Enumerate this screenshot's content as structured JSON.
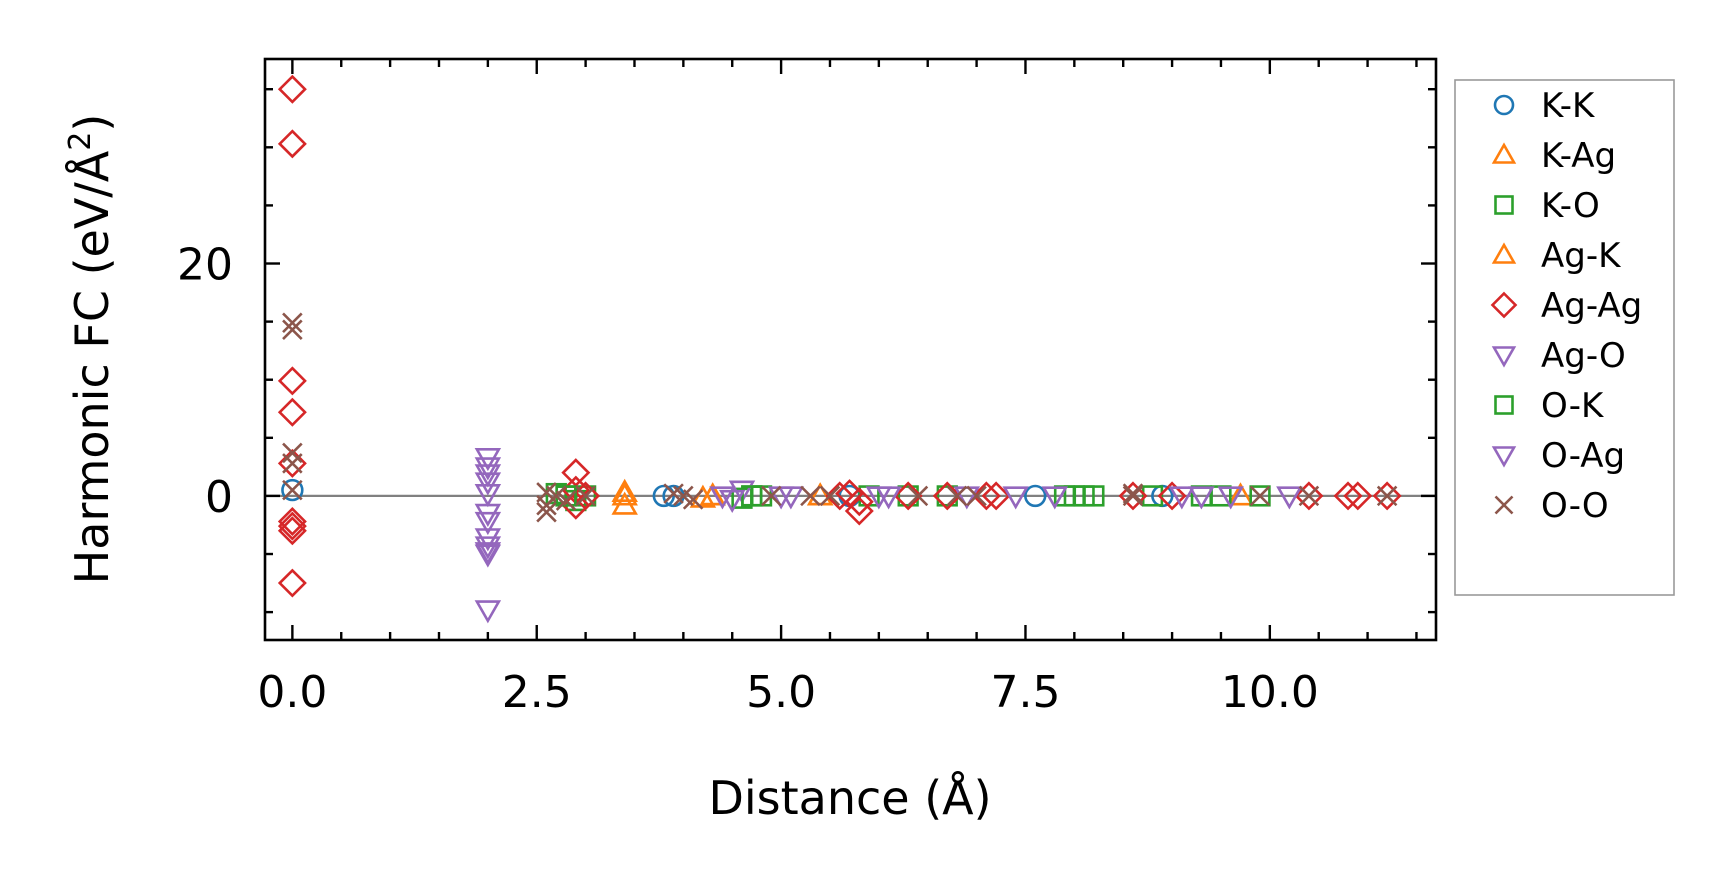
{
  "chart_data": {
    "type": "scatter",
    "title": "",
    "xlabel": "Distance (Å)",
    "ylabel": "Harmonic FC (eV/Å",
    "ylabel_sup": "2",
    "ylabel_close": ")",
    "xlim": [
      -0.28,
      11.7
    ],
    "ylim": [
      -12.4,
      37.6
    ],
    "xticks": [
      0.0,
      2.5,
      5.0,
      7.5,
      10.0
    ],
    "xtick_labels": [
      "0.0",
      "2.5",
      "5.0",
      "7.5",
      "10.0"
    ],
    "yticks": [
      0,
      20
    ],
    "ytick_labels": [
      "0",
      "20"
    ],
    "zero_line": true,
    "legend_position": "right-outside",
    "series": [
      {
        "name": "K-K",
        "color": "#1f77b4",
        "marker": "circle",
        "x": [
          0.0,
          3.8,
          3.9,
          5.7,
          7.6,
          8.9
        ],
        "y": [
          0.5,
          0.0,
          0.0,
          0.0,
          0.0,
          0.0
        ]
      },
      {
        "name": "K-Ag",
        "color": "#ff7f0e",
        "marker": "triangle-up",
        "filled": true,
        "x": [
          3.4,
          3.4,
          4.2,
          4.3,
          5.4,
          9.7
        ],
        "y": [
          0.3,
          -0.8,
          -0.2,
          0.0,
          0.0,
          0.0
        ]
      },
      {
        "name": "K-O",
        "color": "#2ca02c",
        "marker": "square",
        "x": [
          2.7,
          2.8,
          2.9,
          3.0,
          4.6,
          4.7,
          4.8,
          5.9,
          6.3,
          6.7,
          7.9,
          8.1,
          8.2,
          8.8,
          9.3,
          9.5,
          9.9
        ],
        "y": [
          0.2,
          0.0,
          -0.4,
          0.0,
          -0.2,
          0.0,
          0.0,
          0.0,
          0.0,
          0.0,
          0.0,
          0.0,
          0.0,
          0.0,
          0.0,
          0.0,
          0.0
        ]
      },
      {
        "name": "Ag-K",
        "color": "#ff7f0e",
        "marker": "triangle-up",
        "x": [
          3.4,
          4.3,
          5.4
        ],
        "y": [
          0.0,
          0.0,
          0.0
        ]
      },
      {
        "name": "Ag-Ag",
        "color": "#d62728",
        "marker": "diamond",
        "x": [
          0.0,
          0.0,
          0.0,
          0.0,
          0.0,
          0.0,
          0.0,
          0.0,
          0.0,
          2.9,
          2.9,
          2.9,
          3.0,
          5.6,
          5.7,
          5.8,
          5.8,
          6.3,
          6.7,
          7.1,
          7.2,
          8.6,
          9.0,
          10.4,
          10.8,
          10.9,
          11.2
        ],
        "y": [
          35.0,
          30.3,
          9.9,
          7.2,
          2.8,
          -2.2,
          -3.0,
          -7.5,
          -2.6,
          2.0,
          0.5,
          -0.8,
          0.0,
          0.0,
          0.2,
          -0.5,
          -1.3,
          0.0,
          0.0,
          0.0,
          0.0,
          0.0,
          0.0,
          0.0,
          0.0,
          0.0,
          0.0
        ]
      },
      {
        "name": "Ag-O",
        "color": "#9467bd",
        "marker": "triangle-down",
        "x": [
          2.0,
          2.0,
          2.0,
          2.0,
          2.0,
          2.0,
          2.0,
          2.0,
          2.0,
          2.0,
          2.0,
          4.4,
          4.6,
          5.0,
          6.0,
          7.4,
          9.3
        ],
        "y": [
          3.3,
          2.5,
          1.9,
          1.2,
          -1.5,
          -2.2,
          -3.6,
          -4.3,
          -5.0,
          0.2,
          -9.8,
          0.0,
          0.5,
          0.0,
          0.0,
          0.0,
          0.0
        ]
      },
      {
        "name": "O-K",
        "color": "#2ca02c",
        "marker": "square",
        "x": [
          2.8,
          4.7,
          8.0
        ],
        "y": [
          0.0,
          0.0,
          0.0
        ]
      },
      {
        "name": "O-Ag",
        "color": "#9467bd",
        "marker": "triangle-down",
        "x": [
          2.0,
          4.5,
          5.1,
          6.1,
          6.9,
          7.8,
          9.1,
          9.6,
          10.2
        ],
        "y": [
          -4.8,
          -0.3,
          0.0,
          0.0,
          0.0,
          0.0,
          0.0,
          0.0,
          0.0
        ]
      },
      {
        "name": "O-O",
        "color": "#8c564b",
        "marker": "x",
        "x": [
          0.0,
          0.0,
          0.0,
          0.0,
          0.0,
          2.6,
          2.6,
          2.6,
          2.7,
          2.8,
          3.0,
          3.9,
          4.0,
          4.1,
          4.9,
          5.3,
          5.5,
          6.4,
          6.8,
          7.0,
          8.6,
          8.6,
          9.9,
          10.4,
          11.2
        ],
        "y": [
          14.9,
          14.3,
          3.7,
          2.8,
          0.5,
          0.3,
          -0.8,
          -1.4,
          0.0,
          -0.4,
          0.0,
          0.2,
          0.0,
          -0.3,
          0.0,
          0.0,
          0.0,
          0.0,
          0.0,
          0.0,
          0.0,
          0.2,
          0.0,
          0.0,
          0.0
        ]
      }
    ]
  }
}
